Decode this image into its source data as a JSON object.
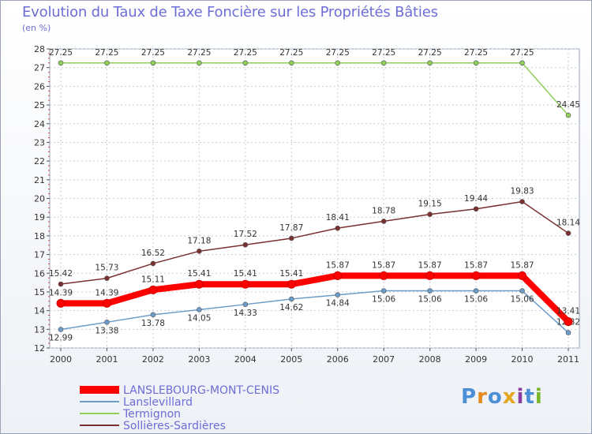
{
  "title": "Evolution du Taux de Taxe Foncière sur les Propriétés Bâties",
  "unit": "(en %)",
  "logo": {
    "text": "Proxiti",
    "colors": [
      "#4d8fd6",
      "#e58a1f",
      "#4d8fd6",
      "#e5a51f",
      "#8a3fa0",
      "#4d8fd6",
      "#7ab52c"
    ]
  },
  "chart_data": {
    "type": "line",
    "title": "Evolution du Taux de Taxe Foncière sur les Propriétés Bâties",
    "ylabel": "(en %)",
    "xlabel": "",
    "categories": [
      "2000",
      "2001",
      "2002",
      "2003",
      "2004",
      "2005",
      "2006",
      "2007",
      "2008",
      "2009",
      "2010",
      "2011"
    ],
    "ylim": [
      12,
      28
    ],
    "yticks": [
      "12",
      "13",
      "14",
      "15",
      "16",
      "17",
      "18",
      "19",
      "20",
      "21",
      "22",
      "23",
      "24",
      "25",
      "26",
      "27",
      "28"
    ],
    "grid": true,
    "legend_position": "bottom-left",
    "series": [
      {
        "name": "LANSLEBOURG-MONT-CENIS",
        "color": "#ff0000",
        "values": [
          14.39,
          14.39,
          15.11,
          15.41,
          15.41,
          15.41,
          15.87,
          15.87,
          15.87,
          15.87,
          15.87,
          13.41
        ],
        "labels": [
          "14.39",
          "14.39",
          "15.11",
          "15.41",
          "15.41",
          "15.41",
          "15.87",
          "15.87",
          "15.87",
          "15.87",
          "15.87",
          "13.41"
        ]
      },
      {
        "name": "Lanslevillard",
        "color": "#6c9cc8",
        "values": [
          12.99,
          13.38,
          13.78,
          14.05,
          14.33,
          14.62,
          14.84,
          15.06,
          15.06,
          15.06,
          15.06,
          12.82
        ],
        "labels": [
          "12.99",
          "13.38",
          "13.78",
          "14.05",
          "14.33",
          "14.62",
          "14.84",
          "15.06",
          "15.06",
          "15.06",
          "15.06",
          "12.82"
        ]
      },
      {
        "name": "Termignon",
        "color": "#8fd05a",
        "values": [
          27.25,
          27.25,
          27.25,
          27.25,
          27.25,
          27.25,
          27.25,
          27.25,
          27.25,
          27.25,
          27.25,
          24.45
        ],
        "labels": [
          "27.25",
          "27.25",
          "27.25",
          "27.25",
          "27.25",
          "27.25",
          "27.25",
          "27.25",
          "27.25",
          "27.25",
          "27.25",
          "24.45"
        ]
      },
      {
        "name": "Sollières-Sardières",
        "color": "#7a3030",
        "values": [
          15.42,
          15.73,
          16.52,
          17.18,
          17.52,
          17.87,
          18.41,
          18.78,
          19.15,
          19.44,
          19.83,
          18.14
        ],
        "labels": [
          "15.42",
          "15.73",
          "16.52",
          "17.18",
          "17.52",
          "17.87",
          "18.41",
          "18.78",
          "19.15",
          "19.44",
          "19.83",
          "18.14"
        ]
      }
    ]
  }
}
